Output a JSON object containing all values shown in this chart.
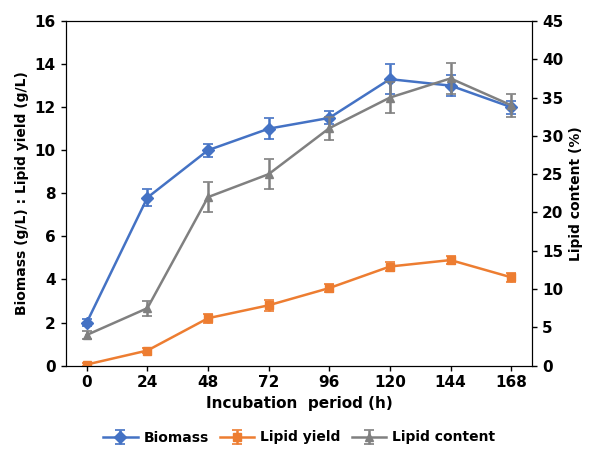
{
  "x": [
    0,
    24,
    48,
    72,
    96,
    120,
    144,
    168
  ],
  "biomass": [
    2.0,
    7.8,
    10.0,
    11.0,
    11.5,
    13.3,
    13.0,
    12.0
  ],
  "biomass_err": [
    0.15,
    0.4,
    0.3,
    0.5,
    0.3,
    0.7,
    0.5,
    0.3
  ],
  "lipid_yield": [
    0.05,
    0.7,
    2.2,
    2.8,
    3.6,
    4.6,
    4.9,
    4.1
  ],
  "lipid_yield_err": [
    0.05,
    0.1,
    0.2,
    0.25,
    0.2,
    0.2,
    0.2,
    0.2
  ],
  "lipid_content_pct": [
    4.0,
    7.5,
    22.0,
    25.0,
    31.0,
    35.0,
    37.5,
    34.0
  ],
  "lipid_content_err_pct": [
    0.5,
    1.0,
    2.0,
    2.0,
    1.5,
    2.0,
    2.0,
    1.5
  ],
  "biomass_color": "#4472C4",
  "lipid_yield_color": "#ED7D31",
  "lipid_content_color": "#808080",
  "xlabel": "Incubation  period (h)",
  "ylabel_left": "Biomass (g/L) : Lipid yield (g/L)",
  "ylabel_right": "Lipid content (%)",
  "ylim_left": [
    0,
    16
  ],
  "ylim_right": [
    0,
    45
  ],
  "yticks_left": [
    0,
    2,
    4,
    6,
    8,
    10,
    12,
    14,
    16
  ],
  "yticks_right": [
    0,
    5,
    10,
    15,
    20,
    25,
    30,
    35,
    40,
    45
  ],
  "xticks": [
    0,
    24,
    48,
    72,
    96,
    120,
    144,
    168
  ],
  "legend_labels": [
    "Biomass",
    "Lipid yield",
    "Lipid content"
  ],
  "bg_color": "#ffffff"
}
